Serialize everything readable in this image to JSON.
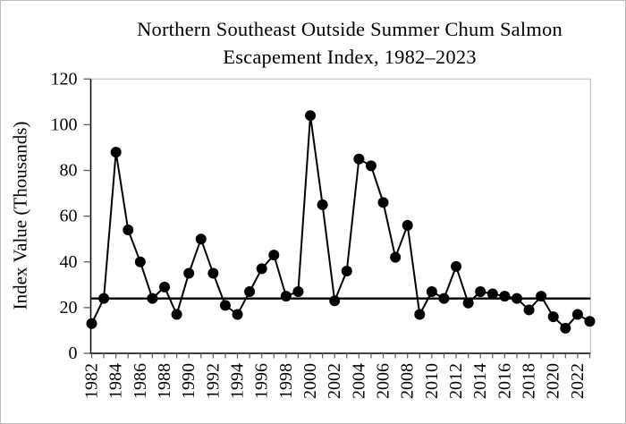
{
  "window": {
    "background_color": "#ffffff",
    "border_color": "#bdbdbd"
  },
  "chart_data": {
    "type": "line",
    "title": "Northern Southeast Outside Summer Chum Salmon Escapement Index, 1982–2023",
    "title_line1": "Northern Southeast Outside Summer Chum Salmon",
    "title_line2": "Escapement Index, 1982–2023",
    "xlabel": "",
    "ylabel": "Index Value (Thousands)",
    "ylim": [
      0,
      120
    ],
    "y_ticks": [
      0,
      20,
      40,
      60,
      80,
      100,
      120
    ],
    "grid": false,
    "legend": "none",
    "marker": {
      "shape": "circle",
      "color": "#000000"
    },
    "line_color": "#000000",
    "border_color": "#c6c6c6",
    "x": [
      1982,
      1983,
      1984,
      1985,
      1986,
      1987,
      1988,
      1989,
      1990,
      1991,
      1992,
      1993,
      1994,
      1995,
      1996,
      1997,
      1998,
      1999,
      2000,
      2001,
      2002,
      2003,
      2004,
      2005,
      2006,
      2007,
      2008,
      2009,
      2010,
      2011,
      2012,
      2013,
      2014,
      2015,
      2016,
      2017,
      2018,
      2019,
      2020,
      2021,
      2022,
      2023
    ],
    "x_tick_labels": [
      "1982",
      "1984",
      "1986",
      "1988",
      "1990",
      "1992",
      "1994",
      "1996",
      "1998",
      "2000",
      "2002",
      "2004",
      "2006",
      "2008",
      "2010",
      "2012",
      "2014",
      "2016",
      "2018",
      "2020",
      "2022"
    ],
    "series": [
      {
        "name": "Escapement Index",
        "values": [
          13,
          24,
          88,
          54,
          40,
          24,
          29,
          17,
          35,
          50,
          35,
          21,
          17,
          27,
          37,
          43,
          25,
          27,
          104,
          65,
          23,
          36,
          85,
          82,
          66,
          42,
          56,
          17,
          27,
          24,
          38,
          22,
          27,
          26,
          25,
          24,
          19,
          25,
          16,
          11,
          17,
          14
        ]
      }
    ],
    "reference_line": {
      "value": 24,
      "color": "#000000"
    }
  }
}
